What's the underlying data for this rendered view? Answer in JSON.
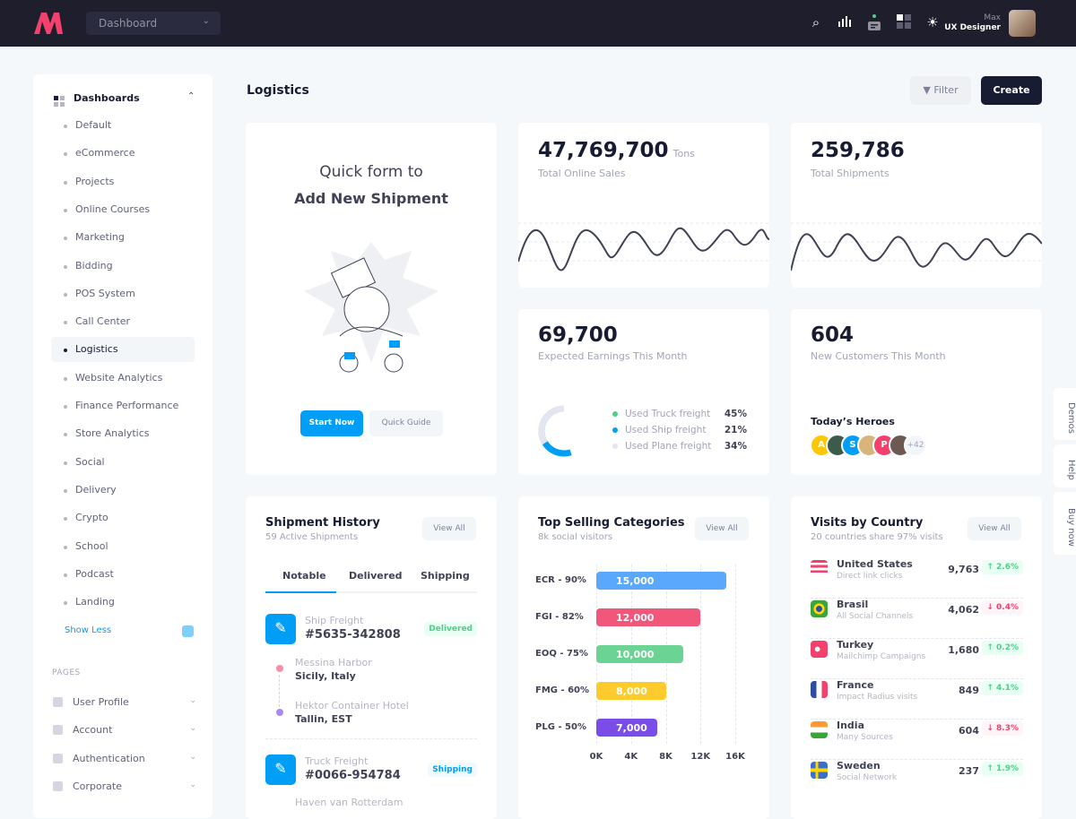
{
  "header": {
    "dashboard_select": "Dashboard",
    "user_name": "Max",
    "user_role": "UX Designer",
    "icons": [
      "search-icon",
      "bar-chart-icon",
      "chat-icon",
      "grid-icon",
      "sun-icon"
    ]
  },
  "sidebar": {
    "section": "Dashboards",
    "items": [
      "Default",
      "eCommerce",
      "Projects",
      "Online Courses",
      "Marketing",
      "Bidding",
      "POS System",
      "Call Center",
      "Logistics",
      "Website Analytics",
      "Finance Performance",
      "Store Analytics",
      "Social",
      "Delivery",
      "Crypto",
      "School",
      "Podcast",
      "Landing"
    ],
    "active": "Logistics",
    "show_less": "Show Less",
    "pages_label": "PAGES",
    "pages": [
      "User Profile",
      "Account",
      "Authentication",
      "Corporate"
    ]
  },
  "page": {
    "title": "Logistics",
    "filter": "Filter",
    "create": "Create"
  },
  "quick_form": {
    "line1": "Quick form to",
    "line2": "Add New Shipment",
    "start": "Start Now",
    "guide": "Quick Guide"
  },
  "stats": {
    "online_sales": {
      "value": "47,769,700",
      "unit": "Tons",
      "label": "Total Online Sales"
    },
    "shipments": {
      "value": "259,786",
      "label": "Total Shipments"
    },
    "earnings": {
      "value": "69,700",
      "label": "Expected Earnings This Month",
      "legend": [
        {
          "label": "Used Truck freight",
          "pct": "45%",
          "color": "#50cd89"
        },
        {
          "label": "Used Ship freight",
          "pct": "21%",
          "color": "#009ef7"
        },
        {
          "label": "Used Plane freight",
          "pct": "34%",
          "color": "#e4e6ef"
        }
      ]
    },
    "customers": {
      "value": "604",
      "label": "New Customers This Month",
      "heroes_title": "Today’s Heroes",
      "heroes": [
        "A",
        "",
        "S",
        "",
        "P",
        ""
      ],
      "more": "+42"
    }
  },
  "shipment_history": {
    "title": "Shipment History",
    "subtitle": "59 Active Shipments",
    "view_all": "View All",
    "tabs": [
      "Notable",
      "Delivered",
      "Shipping"
    ],
    "items": [
      {
        "type": "Ship Freight",
        "id": "#5635-342808",
        "status": "Delivered",
        "from_name": "Messina Harbor",
        "from_loc": "Sicily, Italy",
        "to_name": "Hektor Container Hotel",
        "to_loc": "Tallin, EST"
      },
      {
        "type": "Truck Freight",
        "id": "#0066-954784",
        "status": "Shipping",
        "from_name": "Haven van Rotterdam"
      }
    ]
  },
  "top_selling": {
    "title": "Top Selling Categories",
    "subtitle": "8k social visitors",
    "view_all": "View All"
  },
  "chart_data": {
    "type": "bar",
    "orientation": "horizontal",
    "categories": [
      "ECR - 90%",
      "FGI - 82%",
      "EOQ - 75%",
      "FMG - 60%",
      "PLG - 50%"
    ],
    "values": [
      15000,
      12000,
      10000,
      8000,
      7000
    ],
    "labels": [
      "15,000",
      "12,000",
      "10,000",
      "8,000",
      "7,000"
    ],
    "colors": [
      "#59a8fb",
      "#f1567b",
      "#6bd394",
      "#fdcb2c",
      "#7b4de8"
    ],
    "xlim": [
      0,
      16000
    ],
    "xticks": [
      "0K",
      "4K",
      "8K",
      "12K",
      "16K"
    ],
    "grid": true
  },
  "visits": {
    "title": "Visits by Country",
    "subtitle": "20 countries share 97% visits",
    "view_all": "View All",
    "rows": [
      {
        "country": "United States",
        "source": "Direct link clicks",
        "value": "9,763",
        "change": "2.6%",
        "dir": "up"
      },
      {
        "country": "Brasil",
        "source": "All Social Channels",
        "value": "4,062",
        "change": "0.4%",
        "dir": "down"
      },
      {
        "country": "Turkey",
        "source": "Mailchimp Campaigns",
        "value": "1,680",
        "change": "0.2%",
        "dir": "up"
      },
      {
        "country": "France",
        "source": "Impact Radius visits",
        "value": "849",
        "change": "4.1%",
        "dir": "up"
      },
      {
        "country": "India",
        "source": "Many Sources",
        "value": "604",
        "change": "8.3%",
        "dir": "down"
      },
      {
        "country": "Sweden",
        "source": "Social Network",
        "value": "237",
        "change": "1.9%",
        "dir": "up"
      }
    ]
  },
  "right_tabs": [
    "Demos",
    "Help",
    "Buy now"
  ]
}
